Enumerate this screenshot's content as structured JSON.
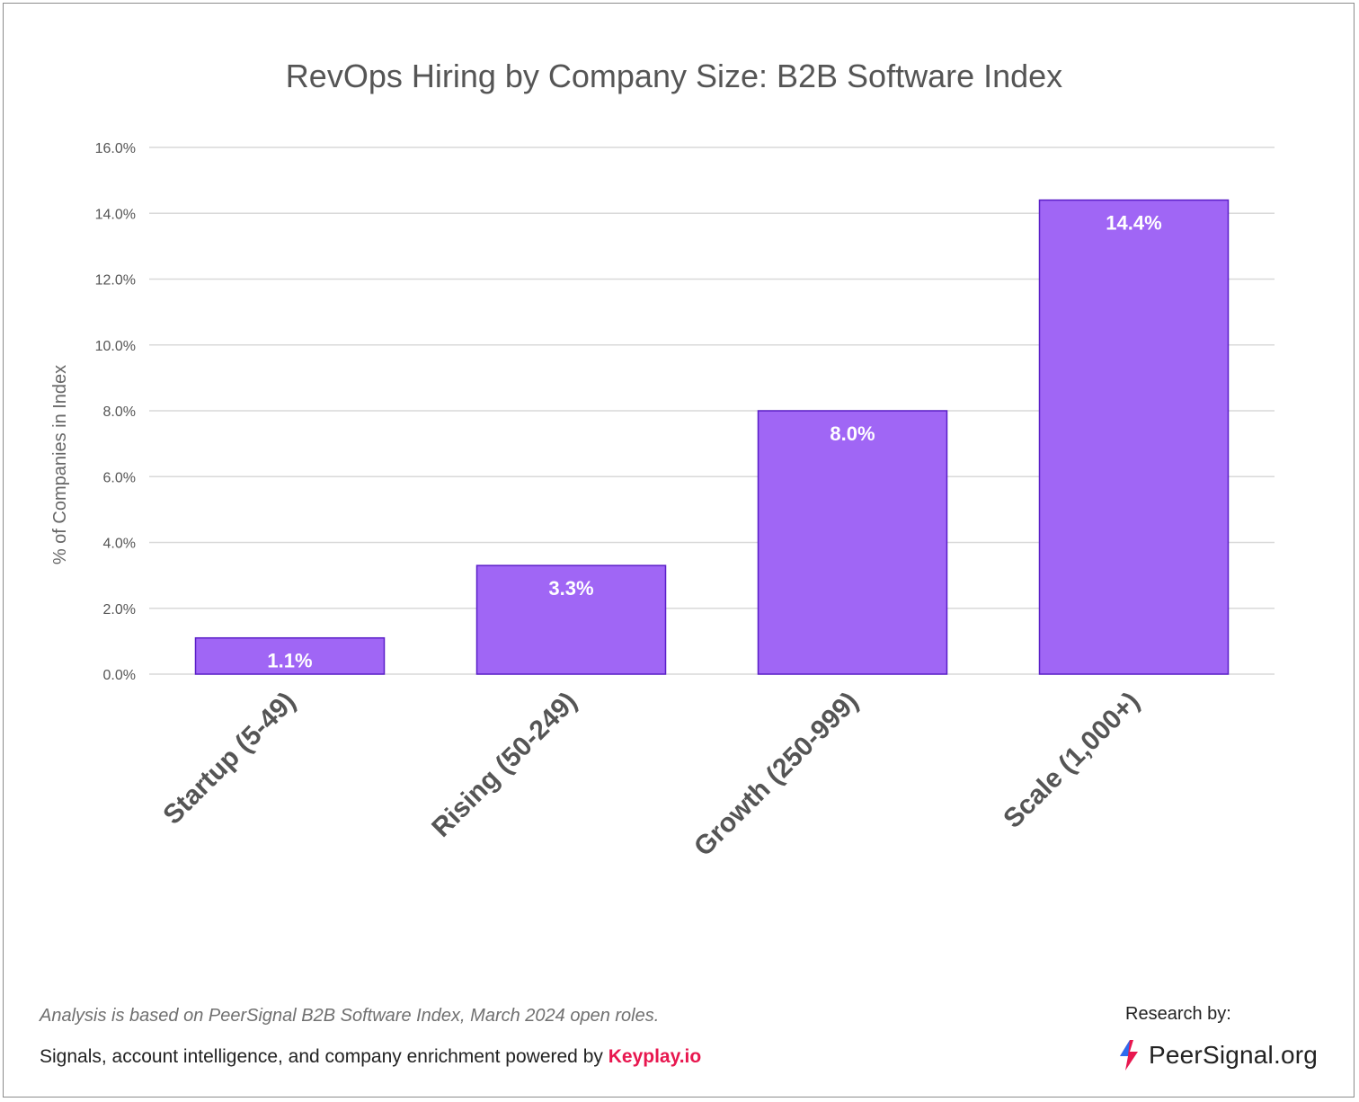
{
  "chart_data": {
    "type": "bar",
    "title": "RevOps Hiring by Company Size: B2B Software Index",
    "ylabel": "% of Companies in Index",
    "xlabel": "",
    "categories": [
      "Startup (5-49)",
      "Rising (50-249)",
      "Growth (250-999)",
      "Scale (1,000+)"
    ],
    "values": [
      1.1,
      3.3,
      8.0,
      14.4
    ],
    "value_labels": [
      "1.1%",
      "3.3%",
      "8.0%",
      "14.4%"
    ],
    "ylim": [
      0,
      16
    ],
    "yticks": [
      0,
      2,
      4,
      6,
      8,
      10,
      12,
      14,
      16
    ],
    "ytick_labels": [
      "0.0%",
      "2.0%",
      "4.0%",
      "6.0%",
      "8.0%",
      "10.0%",
      "12.0%",
      "14.0%",
      "16.0%"
    ],
    "grid": true,
    "legend": "none",
    "colors": {
      "bar": "#a066f5",
      "bar_edge": "#5a1ec8",
      "grid": "#d9d9d9",
      "text": "#555555"
    }
  },
  "footer": {
    "note": "Analysis is based on PeerSignal B2B Software Index, March 2024 open roles.",
    "credits_prefix": "Signals, account intelligence, and company enrichment powered by ",
    "credits_brand": "Keyplay.io",
    "research_by": "Research by:",
    "logo_text": "PeerSignal.org",
    "logo_icon": "peersignal-logo-icon"
  }
}
